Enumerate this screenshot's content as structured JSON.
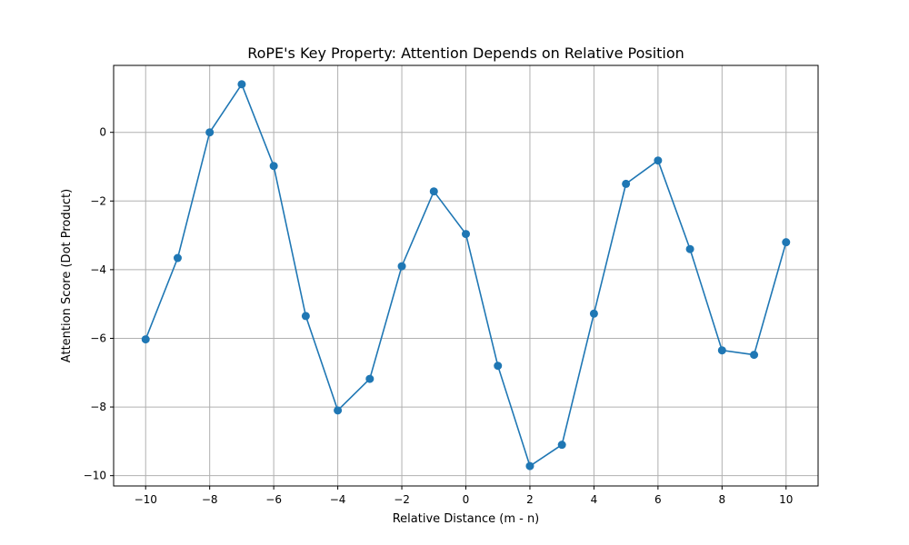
{
  "chart_data": {
    "type": "line",
    "title": "RoPE's Key Property: Attention Depends on Relative Position",
    "xlabel": "Relative Distance (m - n)",
    "ylabel": "Attention Score (Dot Product)",
    "xlim": [
      -11,
      11
    ],
    "ylim": [
      -10.3,
      1.95
    ],
    "xticks": [
      -10,
      -8,
      -6,
      -4,
      -2,
      0,
      2,
      4,
      6,
      8,
      10
    ],
    "xtick_labels": [
      "−10",
      "−8",
      "−6",
      "−4",
      "−2",
      "0",
      "2",
      "4",
      "6",
      "8",
      "10"
    ],
    "yticks": [
      0,
      -2,
      -4,
      -6,
      -8,
      -10
    ],
    "ytick_labels": [
      "0",
      "−2",
      "−4",
      "−6",
      "−8",
      "−10"
    ],
    "grid": true,
    "series": [
      {
        "color": "#1f77b4",
        "x": [
          -10,
          -9,
          -8,
          -7,
          -6,
          -5,
          -4,
          -3,
          -2,
          -1,
          0,
          1,
          2,
          3,
          4,
          5,
          6,
          7,
          8,
          9,
          10
        ],
        "y": [
          -6.03,
          -3.66,
          0.0,
          1.4,
          -0.98,
          -5.35,
          -8.1,
          -7.18,
          -3.9,
          -1.72,
          -2.96,
          -6.8,
          -9.72,
          -9.1,
          -5.28,
          -1.5,
          -0.82,
          -3.4,
          -6.35,
          -6.48,
          -3.2
        ]
      }
    ]
  }
}
